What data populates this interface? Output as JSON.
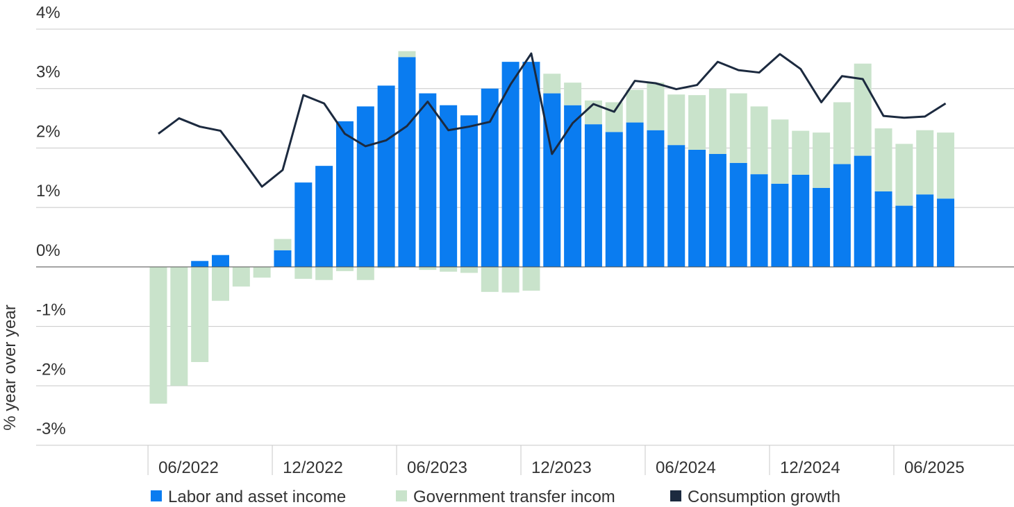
{
  "chart_data": {
    "type": "bar",
    "stacked": true,
    "y_label": "% year over year",
    "categories": [
      "06/2022",
      null,
      null,
      null,
      null,
      null,
      "12/2022",
      null,
      null,
      null,
      null,
      null,
      "06/2023",
      null,
      null,
      null,
      null,
      null,
      "12/2023",
      null,
      null,
      null,
      null,
      null,
      "06/2024",
      null,
      null,
      null,
      null,
      null,
      "12/2024",
      null,
      null,
      null,
      null,
      null,
      "06/2025",
      null,
      null
    ],
    "series": [
      {
        "name": "Labor and asset income",
        "color": "#0a7cf0",
        "type": "bar",
        "values": [
          0,
          0,
          0.1,
          0.2,
          0,
          0,
          0.28,
          1.42,
          1.7,
          2.45,
          2.7,
          3.05,
          3.53,
          2.92,
          2.72,
          2.55,
          3.0,
          3.45,
          3.45,
          2.92,
          2.72,
          2.4,
          2.27,
          2.43,
          2.3,
          2.05,
          1.97,
          1.9,
          1.75,
          1.56,
          1.4,
          1.55,
          1.33,
          1.73,
          1.87,
          1.27,
          1.03,
          1.22,
          1.15
        ]
      },
      {
        "name": "Government transfer incom",
        "color": "#c9e3cb",
        "type": "bar",
        "values": [
          -2.3,
          -2.0,
          -1.6,
          -0.57,
          -0.33,
          -0.18,
          0.19,
          -0.2,
          -0.22,
          -0.07,
          -0.22,
          -0.02,
          0.1,
          -0.05,
          -0.08,
          -0.1,
          -0.42,
          -0.43,
          -0.4,
          0.33,
          0.38,
          0.4,
          0.5,
          0.55,
          0.8,
          0.85,
          0.92,
          1.1,
          1.17,
          1.14,
          1.08,
          0.74,
          0.93,
          1.04,
          1.55,
          1.06,
          1.04,
          1.08,
          1.11
        ]
      },
      {
        "name": "Consumption growth",
        "color": "#1c2a3f",
        "type": "line",
        "values": [
          2.24,
          2.5,
          2.36,
          2.29,
          1.83,
          1.35,
          1.63,
          2.89,
          2.75,
          2.24,
          2.03,
          2.13,
          2.37,
          2.78,
          2.3,
          2.36,
          2.44,
          3.07,
          3.59,
          1.9,
          2.42,
          2.74,
          2.61,
          3.13,
          3.09,
          2.99,
          3.06,
          3.45,
          3.31,
          3.27,
          3.58,
          3.33,
          2.77,
          3.21,
          3.16,
          2.54,
          2.51,
          2.53,
          2.75
        ]
      }
    ],
    "ylim": [
      -3,
      4
    ],
    "yticks": [
      {
        "value": -3,
        "label": "-3%"
      },
      {
        "value": -2,
        "label": "-2%"
      },
      {
        "value": -1,
        "label": "-1%"
      },
      {
        "value": 0,
        "label": "0%"
      },
      {
        "value": 1,
        "label": "1%"
      },
      {
        "value": 2,
        "label": "2%"
      },
      {
        "value": 3,
        "label": "3%"
      },
      {
        "value": 4,
        "label": "4%"
      }
    ],
    "grid": true,
    "legend": "bottom"
  }
}
